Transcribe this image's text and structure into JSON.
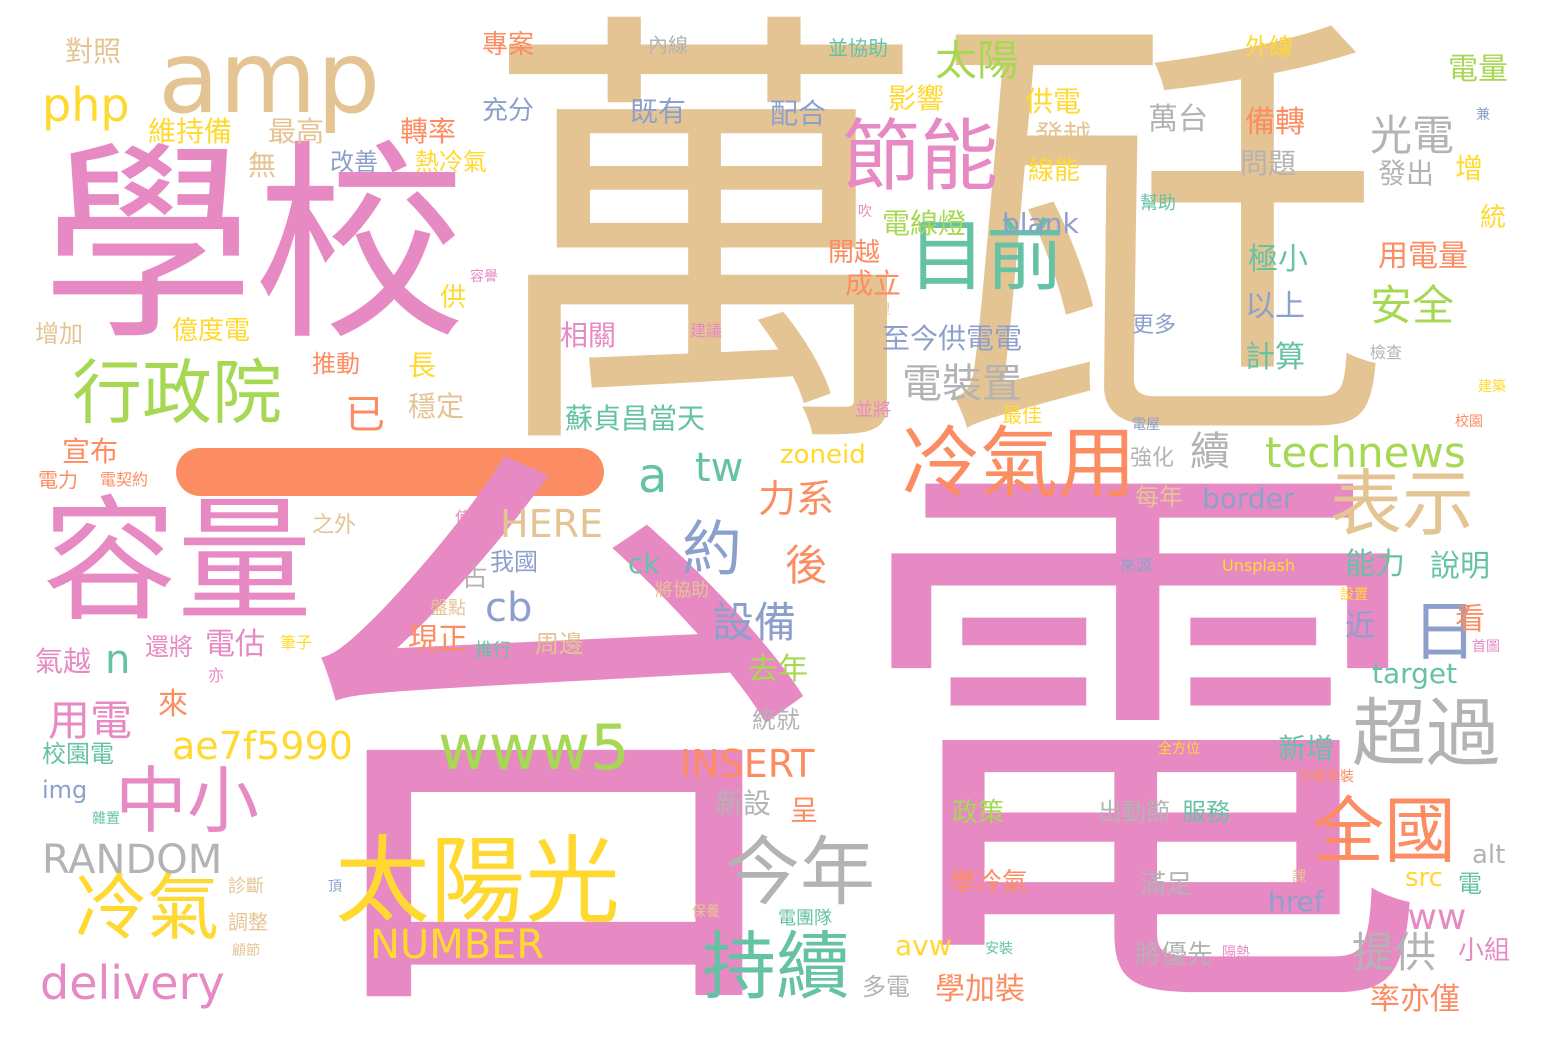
{
  "palette": {
    "pink": "#e78ac3",
    "tan": "#e5c494",
    "green": "#a6d854",
    "yellow": "#ffd92f",
    "orange": "#fc8d62",
    "teal": "#66c2a5",
    "blue": "#8da0cb",
    "gray": "#b3b3b3"
  },
  "bar_color": "#fc8d62",
  "words": [
    {
      "text": "台電",
      "color": "#e78ac3"
    },
    {
      "text": "萬瓩",
      "color": "#e5c494"
    },
    {
      "text": "學校",
      "color": "#e78ac3"
    },
    {
      "text": "amp",
      "color": "#e5c494"
    },
    {
      "text": "容量",
      "color": "#e78ac3"
    },
    {
      "text": "太陽光",
      "color": "#ffd92f"
    },
    {
      "text": "節能",
      "color": "#e78ac3"
    },
    {
      "text": "目前",
      "color": "#66c2a5"
    },
    {
      "text": "行政院",
      "color": "#a6d854"
    },
    {
      "text": "冷氣用",
      "color": "#fc8d62"
    },
    {
      "text": "表示",
      "color": "#e5c494"
    },
    {
      "text": "超過",
      "color": "#b3b3b3"
    },
    {
      "text": "全國",
      "color": "#fc8d62"
    },
    {
      "text": "今年",
      "color": "#b3b3b3"
    },
    {
      "text": "持續",
      "color": "#66c2a5"
    },
    {
      "text": "冷氣",
      "color": "#ffd92f"
    },
    {
      "text": "中小",
      "color": "#e78ac3"
    },
    {
      "text": "www5",
      "color": "#a6d854"
    },
    {
      "text": "約",
      "color": "#8da0cb"
    },
    {
      "text": "日",
      "color": "#8da0cb"
    },
    {
      "text": "technews",
      "color": "#a6d854"
    },
    {
      "text": "太陽",
      "color": "#a6d854"
    },
    {
      "text": "光電",
      "color": "#b3b3b3"
    },
    {
      "text": "安全",
      "color": "#a6d854"
    },
    {
      "text": "php",
      "color": "#ffd92f"
    },
    {
      "text": "delivery",
      "color": "#e78ac3"
    },
    {
      "text": "RANDOM",
      "color": "#b3b3b3"
    },
    {
      "text": "NUMBER",
      "color": "#ffd92f"
    },
    {
      "text": "ae7f5990",
      "color": "#ffd92f"
    },
    {
      "text": "INSERT",
      "color": "#fc8d62"
    },
    {
      "text": "HERE",
      "color": "#e5c494"
    },
    {
      "text": "www",
      "color": "#e78ac3"
    },
    {
      "text": "a",
      "color": "#66c2a5"
    },
    {
      "text": "tw",
      "color": "#66c2a5"
    },
    {
      "text": "cb",
      "color": "#8da0cb"
    },
    {
      "text": "n",
      "color": "#66c2a5"
    },
    {
      "text": "設備",
      "color": "#8da0cb"
    },
    {
      "text": "電裝置",
      "color": "#b3b3b3"
    },
    {
      "text": "用電",
      "color": "#e78ac3"
    },
    {
      "text": "提供",
      "color": "#b3b3b3"
    },
    {
      "text": "力系",
      "color": "#fc8d62"
    },
    {
      "text": "後",
      "color": "#fc8d62"
    },
    {
      "text": "已",
      "color": "#fc8d62"
    },
    {
      "text": "續",
      "color": "#b3b3b3"
    },
    {
      "text": "萬台",
      "color": "#b3b3b3"
    },
    {
      "text": "備轉",
      "color": "#fc8d62"
    },
    {
      "text": "電量",
      "color": "#a6d854"
    },
    {
      "text": "電線燈",
      "color": "#a6d854"
    },
    {
      "text": "blank",
      "color": "#8da0cb"
    },
    {
      "text": "至今供電電",
      "color": "#8da0cb"
    },
    {
      "text": "蘇貞昌當天",
      "color": "#66c2a5"
    },
    {
      "text": "zoneid",
      "color": "#ffd92f"
    },
    {
      "text": "border",
      "color": "#8da0cb"
    },
    {
      "text": "影響",
      "color": "#ffd92f"
    },
    {
      "text": "供電",
      "color": "#ffd92f"
    },
    {
      "text": "發越",
      "color": "#e5c494"
    },
    {
      "text": "線能",
      "color": "#ffd92f"
    },
    {
      "text": "用電量",
      "color": "#fc8d62"
    },
    {
      "text": "極小",
      "color": "#66c2a5"
    },
    {
      "text": "以上",
      "color": "#8da0cb"
    },
    {
      "text": "計算",
      "color": "#66c2a5"
    },
    {
      "text": "問題",
      "color": "#b3b3b3"
    },
    {
      "text": "發出",
      "color": "#b3b3b3"
    },
    {
      "text": "增",
      "color": "#ffd92f"
    },
    {
      "text": "統",
      "color": "#ffd92f"
    },
    {
      "text": "能力",
      "color": "#66c2a5"
    },
    {
      "text": "說明",
      "color": "#66c2a5"
    },
    {
      "text": "近",
      "color": "#8da0cb"
    },
    {
      "text": "看",
      "color": "#fc8d62"
    },
    {
      "text": "target",
      "color": "#66c2a5"
    },
    {
      "text": "新增",
      "color": "#66c2a5"
    },
    {
      "text": "alt",
      "color": "#b3b3b3"
    },
    {
      "text": "src",
      "color": "#ffd92f"
    },
    {
      "text": "電",
      "color": "#66c2a5"
    },
    {
      "text": "href",
      "color": "#8da0cb"
    },
    {
      "text": "小組",
      "color": "#e78ac3"
    },
    {
      "text": "率亦僅",
      "color": "#fc8d62"
    },
    {
      "text": "將優先",
      "color": "#b3b3b3"
    },
    {
      "text": "滿足",
      "color": "#b3b3b3"
    },
    {
      "text": "學冷氣",
      "color": "#fc8d62"
    },
    {
      "text": "出動節",
      "color": "#b3b3b3"
    },
    {
      "text": "服務",
      "color": "#66c2a5"
    },
    {
      "text": "政策",
      "color": "#a6d854"
    },
    {
      "text": "學加裝",
      "color": "#fc8d62"
    },
    {
      "text": "多電",
      "color": "#b3b3b3"
    },
    {
      "text": "avw",
      "color": "#ffd92f"
    },
    {
      "text": "新設",
      "color": "#b3b3b3"
    },
    {
      "text": "呈",
      "color": "#fc8d62"
    },
    {
      "text": "統就",
      "color": "#b3b3b3"
    },
    {
      "text": "去年",
      "color": "#a6d854"
    },
    {
      "text": "現正",
      "color": "#fc8d62"
    },
    {
      "text": "周邊",
      "color": "#e5c494"
    },
    {
      "text": "占",
      "color": "#b3b3b3"
    },
    {
      "text": "我國",
      "color": "#8da0cb"
    },
    {
      "text": "ck",
      "color": "#66c2a5"
    },
    {
      "text": "將協助",
      "color": "#e5c494"
    },
    {
      "text": "推行",
      "color": "#66c2a5"
    },
    {
      "text": "還將",
      "color": "#e78ac3"
    },
    {
      "text": "電估",
      "color": "#e78ac3"
    },
    {
      "text": "氣越",
      "color": "#e78ac3"
    },
    {
      "text": "來",
      "color": "#fc8d62"
    },
    {
      "text": "校園電",
      "color": "#66c2a5"
    },
    {
      "text": "img",
      "color": "#8da0cb"
    },
    {
      "text": "宣布",
      "color": "#fc8d62"
    },
    {
      "text": "電力",
      "color": "#fc8d62"
    },
    {
      "text": "電契約",
      "color": "#fc8d62"
    },
    {
      "text": "之外",
      "color": "#e5c494"
    },
    {
      "text": "使用",
      "color": "#e78ac3"
    },
    {
      "text": "盤點",
      "color": "#e5c494"
    },
    {
      "text": "筆子",
      "color": "#ffd92f"
    },
    {
      "text": "亦",
      "color": "#e78ac3"
    },
    {
      "text": "穩定",
      "color": "#e5c494"
    },
    {
      "text": "長",
      "color": "#ffd92f"
    },
    {
      "text": "推動",
      "color": "#fc8d62"
    },
    {
      "text": "億度電",
      "color": "#ffd92f"
    },
    {
      "text": "供",
      "color": "#ffd92f"
    },
    {
      "text": "增加",
      "color": "#e5c494"
    },
    {
      "text": "相關",
      "color": "#e78ac3"
    },
    {
      "text": "成立",
      "color": "#fc8d62"
    },
    {
      "text": "開越",
      "color": "#fc8d62"
    },
    {
      "text": "建議",
      "color": "#e78ac3"
    },
    {
      "text": "管理",
      "color": "#e5c494"
    },
    {
      "text": "吹",
      "color": "#e78ac3"
    },
    {
      "text": "容譽",
      "color": "#e78ac3"
    },
    {
      "text": "改善",
      "color": "#8da0cb"
    },
    {
      "text": "熱冷氣",
      "color": "#ffd92f"
    },
    {
      "text": "無",
      "color": "#e5c494"
    },
    {
      "text": "維持備",
      "color": "#ffd92f"
    },
    {
      "text": "最高",
      "color": "#e5c494"
    },
    {
      "text": "轉率",
      "color": "#fc8d62"
    },
    {
      "text": "充分",
      "color": "#8da0cb"
    },
    {
      "text": "既有",
      "color": "#8da0cb"
    },
    {
      "text": "配合",
      "color": "#8da0cb"
    },
    {
      "text": "對照",
      "color": "#e5c494"
    },
    {
      "text": "專案",
      "color": "#fc8d62"
    },
    {
      "text": "內線",
      "color": "#b3b3b3"
    },
    {
      "text": "並協助",
      "color": "#66c2a5"
    },
    {
      "text": "外線",
      "color": "#ffd92f"
    },
    {
      "text": "幫助",
      "color": "#66c2a5"
    },
    {
      "text": "兼",
      "color": "#8da0cb"
    },
    {
      "text": "更多",
      "color": "#8da0cb"
    },
    {
      "text": "檢查",
      "color": "#b3b3b3"
    },
    {
      "text": "建築",
      "color": "#ffd92f"
    },
    {
      "text": "校園",
      "color": "#fc8d62"
    },
    {
      "text": "電屋",
      "color": "#8da0cb"
    },
    {
      "text": "強化",
      "color": "#b3b3b3"
    },
    {
      "text": "每年",
      "color": "#e5c494"
    },
    {
      "text": "並將",
      "color": "#e78ac3"
    },
    {
      "text": "最佳",
      "color": "#ffd92f"
    },
    {
      "text": "來源",
      "color": "#8da0cb"
    },
    {
      "text": "Unsplash",
      "color": "#ffd92f"
    },
    {
      "text": "設置",
      "color": "#ffd92f"
    },
    {
      "text": "首圖",
      "color": "#e78ac3"
    },
    {
      "text": "全方位",
      "color": "#ffd92f"
    },
    {
      "text": "冷氣安裝",
      "color": "#fc8d62"
    },
    {
      "text": "電團隊",
      "color": "#66c2a5"
    },
    {
      "text": "保養",
      "color": "#e5c494"
    },
    {
      "text": "安裝",
      "color": "#66c2a5"
    },
    {
      "text": "隔熱",
      "color": "#e78ac3"
    },
    {
      "text": "課",
      "color": "#e5c494"
    },
    {
      "text": "頂",
      "color": "#8da0cb"
    },
    {
      "text": "診斷",
      "color": "#e5c494"
    },
    {
      "text": "調整",
      "color": "#e5c494"
    },
    {
      "text": "顧節",
      "color": "#e5c494"
    },
    {
      "text": "雜置",
      "color": "#66c2a5"
    }
  ]
}
